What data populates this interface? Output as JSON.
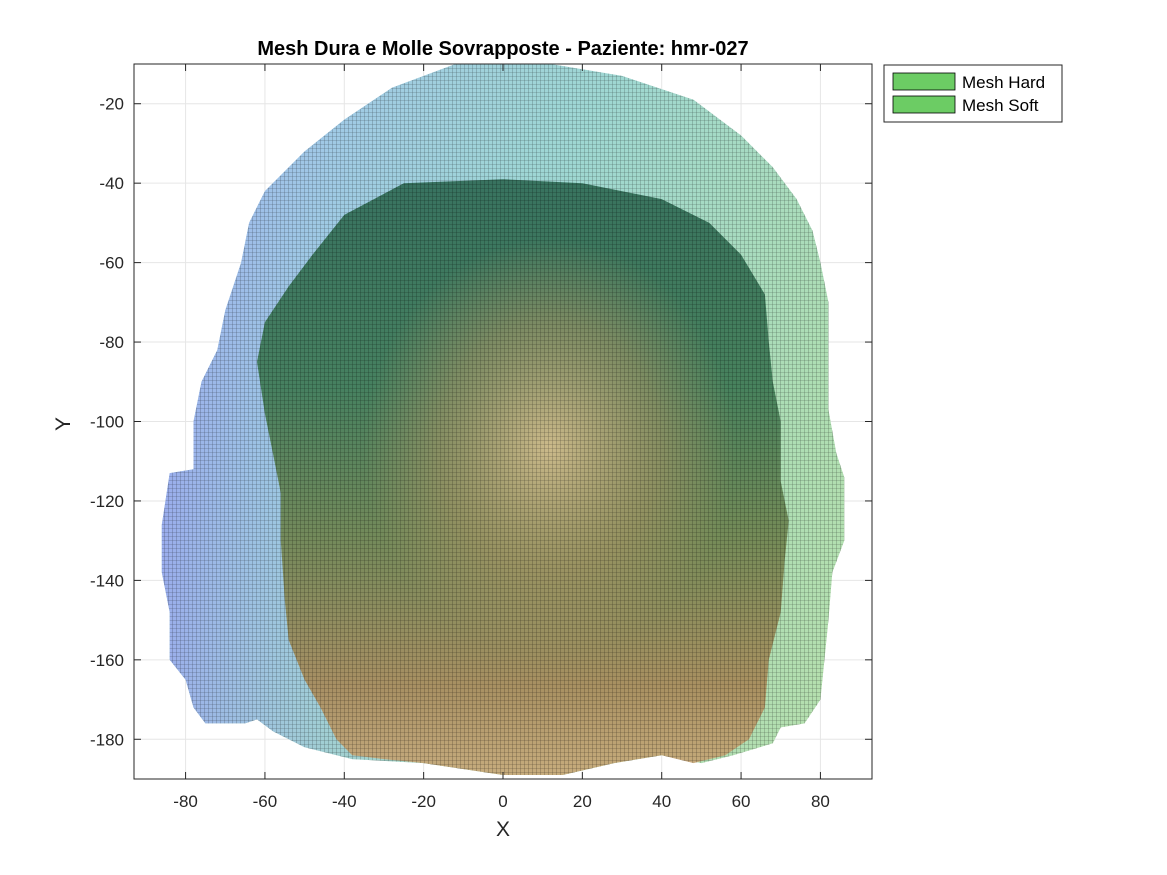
{
  "chart_data": {
    "type": "mesh",
    "title": "Mesh Dura e Molle Sovrapposte - Paziente: hmr-027",
    "xlabel": "X",
    "ylabel": "Y",
    "xlim": [
      -93,
      93
    ],
    "ylim": [
      -190,
      -10
    ],
    "xticks": [
      -80,
      -60,
      -40,
      -20,
      0,
      20,
      40,
      60,
      80
    ],
    "yticks": [
      -20,
      -40,
      -60,
      -80,
      -100,
      -120,
      -140,
      -160,
      -180
    ],
    "xtick_labels": [
      "-80",
      "-60",
      "-40",
      "-20",
      "0",
      "20",
      "40",
      "60",
      "80"
    ],
    "ytick_labels": [
      "-20",
      "-40",
      "-60",
      "-80",
      "-100",
      "-120",
      "-140",
      "-160",
      "-180"
    ],
    "grid": true,
    "legend_position": "outside-top-right",
    "series": [
      {
        "name": "Mesh Soft",
        "legend_color": "#6ccc64",
        "outline": [
          [
            -12,
            -10
          ],
          [
            12,
            -10
          ],
          [
            30,
            -13
          ],
          [
            48,
            -19
          ],
          [
            60,
            -28
          ],
          [
            68,
            -36
          ],
          [
            74,
            -44
          ],
          [
            78,
            -52
          ],
          [
            80,
            -60
          ],
          [
            82,
            -70
          ],
          [
            82,
            -84
          ],
          [
            82,
            -97
          ],
          [
            84,
            -108
          ],
          [
            86,
            -114
          ],
          [
            86,
            -130
          ],
          [
            83,
            -138
          ],
          [
            82,
            -150
          ],
          [
            81,
            -160
          ],
          [
            80,
            -170
          ],
          [
            76,
            -176
          ],
          [
            70,
            -177
          ],
          [
            68,
            -181
          ],
          [
            58,
            -184
          ],
          [
            50,
            -186
          ],
          [
            40,
            -184
          ],
          [
            28,
            -186
          ],
          [
            15,
            -189
          ],
          [
            0,
            -189
          ],
          [
            -20,
            -186
          ],
          [
            -38,
            -185
          ],
          [
            -50,
            -182
          ],
          [
            -58,
            -178
          ],
          [
            -62,
            -175
          ],
          [
            -65,
            -176
          ],
          [
            -75,
            -176
          ],
          [
            -78,
            -172
          ],
          [
            -80,
            -165
          ],
          [
            -84,
            -160
          ],
          [
            -84,
            -148
          ],
          [
            -86,
            -138
          ],
          [
            -86,
            -126
          ],
          [
            -84,
            -113
          ],
          [
            -78,
            -112
          ],
          [
            -78,
            -100
          ],
          [
            -76,
            -90
          ],
          [
            -72,
            -82
          ],
          [
            -70,
            -72
          ],
          [
            -66,
            -60
          ],
          [
            -64,
            -50
          ],
          [
            -60,
            -42
          ],
          [
            -50,
            -32
          ],
          [
            -40,
            -24
          ],
          [
            -28,
            -16
          ]
        ]
      },
      {
        "name": "Mesh Hard",
        "legend_color": "#6ccc64",
        "outline": [
          [
            -25,
            -40
          ],
          [
            0,
            -39
          ],
          [
            20,
            -40
          ],
          [
            40,
            -44
          ],
          [
            52,
            -50
          ],
          [
            60,
            -58
          ],
          [
            66,
            -68
          ],
          [
            67,
            -80
          ],
          [
            68,
            -90
          ],
          [
            70,
            -100
          ],
          [
            70,
            -115
          ],
          [
            72,
            -125
          ],
          [
            71,
            -135
          ],
          [
            70,
            -148
          ],
          [
            67,
            -160
          ],
          [
            66,
            -172
          ],
          [
            62,
            -180
          ],
          [
            56,
            -184
          ],
          [
            48,
            -186
          ],
          [
            40,
            -184
          ],
          [
            28,
            -186
          ],
          [
            15,
            -189
          ],
          [
            0,
            -189
          ],
          [
            -20,
            -186
          ],
          [
            -30,
            -185
          ],
          [
            -38,
            -184
          ],
          [
            -42,
            -180
          ],
          [
            -46,
            -172
          ],
          [
            -50,
            -165
          ],
          [
            -54,
            -155
          ],
          [
            -55,
            -145
          ],
          [
            -56,
            -130
          ],
          [
            -56,
            -118
          ],
          [
            -58,
            -108
          ],
          [
            -60,
            -98
          ],
          [
            -62,
            -85
          ],
          [
            -60,
            -75
          ],
          [
            -54,
            -66
          ],
          [
            -48,
            -58
          ],
          [
            -40,
            -48
          ]
        ]
      }
    ]
  },
  "legend": {
    "entries": [
      "Mesh Hard",
      "Mesh Soft"
    ]
  }
}
